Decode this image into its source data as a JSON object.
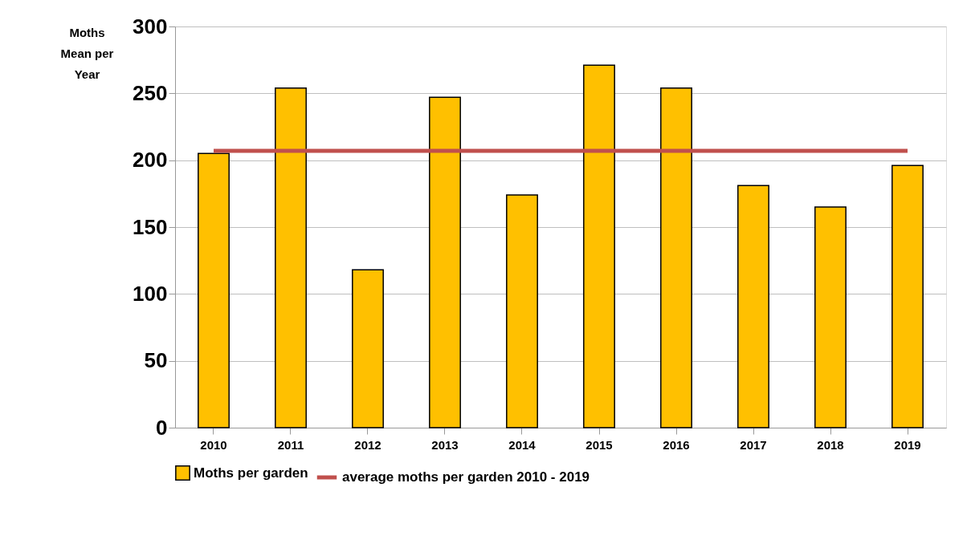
{
  "chart_data": {
    "type": "bar",
    "ylabel": "Moths Mean per Year",
    "categories": [
      "2010",
      "2011",
      "2012",
      "2013",
      "2014",
      "2015",
      "2016",
      "2017",
      "2018",
      "2019"
    ],
    "series": [
      {
        "name": "Moths per garden",
        "color": "#ffc000",
        "values": [
          205,
          254,
          118,
          247,
          174,
          271,
          254,
          181,
          165,
          196
        ]
      },
      {
        "name": "average moths per garden 2010 - 2019",
        "type": "line",
        "color": "#c0504d",
        "values": [
          207,
          207,
          207,
          207,
          207,
          207,
          207,
          207,
          207,
          207
        ]
      }
    ],
    "ylim": [
      0,
      300
    ],
    "yticks": [
      0,
      50,
      100,
      150,
      200,
      250,
      300
    ],
    "grid": "y",
    "legend": "bottom"
  }
}
